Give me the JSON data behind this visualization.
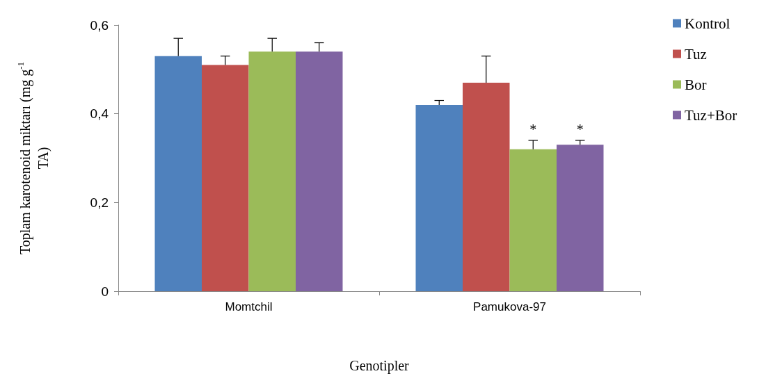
{
  "chart_data": {
    "type": "bar",
    "xlabel": "Genotipler",
    "ylabel": "Toplam karotenoid miktarı (mg g$^{-1}$ TA)",
    "categories": [
      "Momtchil",
      "Pamukova-97"
    ],
    "series": [
      {
        "name": "Kontrol",
        "color": "#4f81bd",
        "values": [
          0.53,
          0.42
        ],
        "errors": [
          [
            0.53,
            0.57
          ],
          [
            0.42,
            0.43
          ]
        ]
      },
      {
        "name": "Tuz",
        "color": "#c0504d",
        "values": [
          0.51,
          0.47
        ],
        "errors": [
          [
            0.51,
            0.53
          ],
          [
            0.47,
            0.53
          ]
        ]
      },
      {
        "name": "Bor",
        "color": "#9bbb59",
        "values": [
          0.54,
          0.32
        ],
        "errors": [
          [
            0.54,
            0.57
          ],
          [
            0.32,
            0.34
          ]
        ],
        "value_labels": [
          null,
          "*"
        ]
      },
      {
        "name": "Tuz+Bor",
        "color": "#8064a2",
        "values": [
          0.54,
          0.33
        ],
        "errors": [
          [
            0.54,
            0.56
          ],
          [
            0.33,
            0.34
          ]
        ],
        "value_labels": [
          null,
          "*"
        ]
      }
    ],
    "ylim": [
      0,
      0.6
    ],
    "yticks": [
      {
        "value": 0,
        "label": "0"
      },
      {
        "value": 0.2,
        "label": "0,2"
      },
      {
        "value": 0.4,
        "label": "0,4"
      },
      {
        "value": 0.6,
        "label": "0,6"
      }
    ],
    "grid": false,
    "legend": "right"
  }
}
